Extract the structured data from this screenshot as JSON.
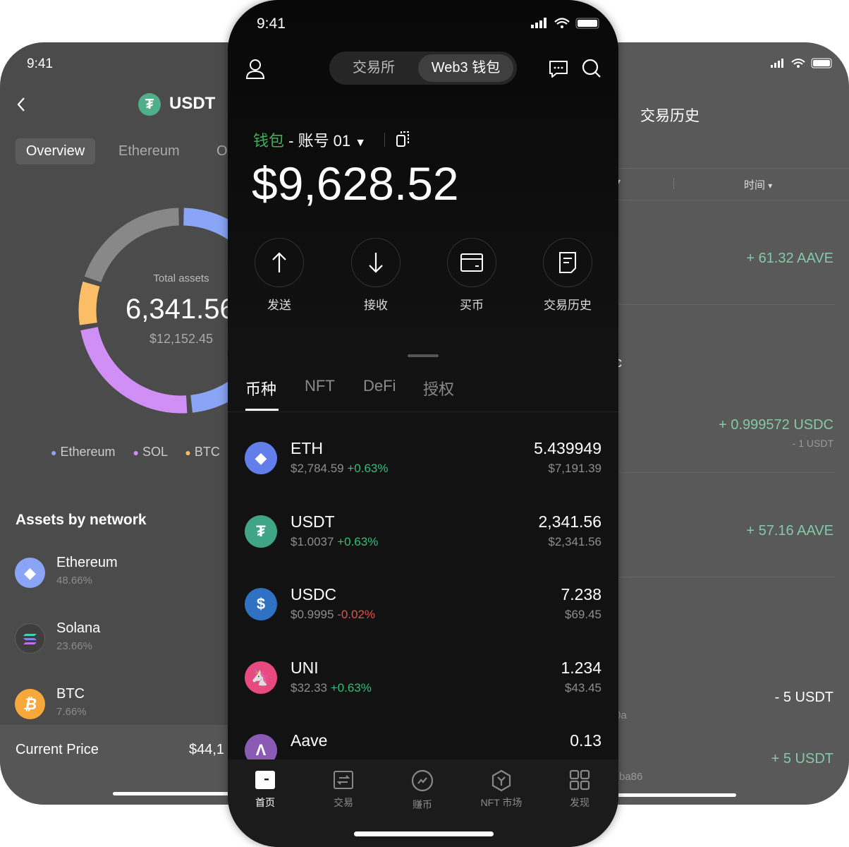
{
  "left_phone": {
    "time": "9:41",
    "title": "USDT",
    "tabs": [
      "Overview",
      "Ethereum",
      "O"
    ],
    "donut": {
      "label": "Total assets",
      "total": "6,341.56",
      "total_usd": "$12,152.45",
      "segments": [
        {
          "name": "Ethereum",
          "value": 48.66,
          "color": "#8aa5f5"
        },
        {
          "name": "SOL",
          "value": 23.66,
          "color": "#cf8ff5"
        },
        {
          "name": "BTC",
          "value": 7.66,
          "color": "#fbbd66"
        },
        {
          "name": "",
          "value": 20.02,
          "color": "#888888"
        }
      ]
    },
    "legend": [
      "Ethereum",
      "SOL",
      "BTC"
    ],
    "section_title": "Assets by network",
    "networks": [
      {
        "name": "Ethereum",
        "pct": "48.66%"
      },
      {
        "name": "Solana",
        "pct": "23.66%"
      },
      {
        "name": "BTC",
        "pct": "7.66%"
      }
    ],
    "current_price_label": "Current Price",
    "current_price": "$44,1"
  },
  "mid_phone": {
    "time": "9:41",
    "switch": [
      "交易所",
      "Web3 钱包"
    ],
    "wallet_label": "钱包",
    "account": " - 账号 01",
    "balance": "$9,628.52",
    "actions": [
      "发送",
      "接收",
      "买币",
      "交易历史"
    ],
    "tabs": [
      "币种",
      "NFT",
      "DeFi",
      "授权"
    ],
    "tokens": [
      {
        "symbol": "ETH",
        "price": "$2,784.59",
        "change": "+0.63%",
        "up": true,
        "amount": "5.439949",
        "value": "$7,191.39",
        "color": "#627eea"
      },
      {
        "symbol": "USDT",
        "price": "$1.0037",
        "change": "+0.63%",
        "up": true,
        "amount": "2,341.56",
        "value": "$2,341.56",
        "color": "#3fa585"
      },
      {
        "symbol": "USDC",
        "price": "$0.9995",
        "change": "-0.02%",
        "up": false,
        "amount": "7.238",
        "value": "$69.45",
        "color": "#2f72c4"
      },
      {
        "symbol": "UNI",
        "price": "$32.33",
        "change": "+0.63%",
        "up": true,
        "amount": "1.234",
        "value": "$43.45",
        "color": "#e84a80"
      },
      {
        "symbol": "Aave",
        "amount": "0.13",
        "color": "#8a5ab5"
      }
    ],
    "nav": [
      "首页",
      "交易",
      "赚币",
      "NFT 市场",
      "发现"
    ]
  },
  "right_phone": {
    "title": "交易历史",
    "filter": "时间",
    "fragments": [
      "c",
      "0a",
      "ba86"
    ],
    "entries": [
      {
        "amount": "+ 61.32 AAVE"
      },
      {
        "amount": "+ 0.999572 USDC",
        "sub": "- 1 USDT"
      },
      {
        "amount": "+ 57.16 AAVE"
      },
      {
        "amount": "- 5 USDT"
      },
      {
        "amount": "+ 5 USDT"
      }
    ]
  }
}
